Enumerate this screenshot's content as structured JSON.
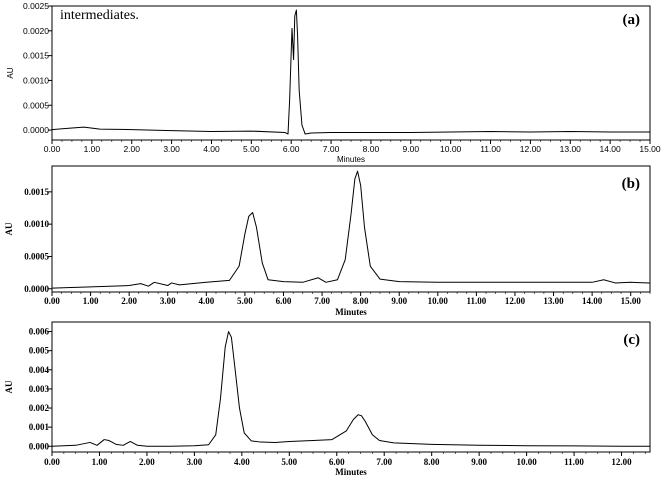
{
  "chart_data": [
    {
      "type": "line",
      "panel_label": "(a)",
      "annotation": "intermediates.",
      "xlabel": "Minutes",
      "ylabel": "AU",
      "xlim": [
        0,
        15
      ],
      "ylim": [
        -0.0002,
        0.0025
      ],
      "x_ticks": [
        0,
        1,
        2,
        3,
        4,
        5,
        6,
        7,
        8,
        9,
        10,
        11,
        12,
        13,
        14,
        15
      ],
      "x_tick_labels": [
        "0.00",
        "1.00",
        "2.00",
        "3.00",
        "4.00",
        "5.00",
        "6.00",
        "7.00",
        "8.00",
        "9.00",
        "10.00",
        "11.00",
        "12.00",
        "13.00",
        "14.00",
        "15.00"
      ],
      "y_ticks": [
        0,
        0.0005,
        0.001,
        0.0015,
        0.002,
        0.0025
      ],
      "y_tick_labels": [
        "0.0000",
        "0.0005",
        "0.0010",
        "0.0015",
        "0.0020",
        "0.0025"
      ],
      "series": [
        {
          "x": [
            0,
            0.3,
            0.8,
            1.2,
            2,
            3,
            4,
            5,
            5.85,
            5.92,
            5.96,
            6.02,
            6.06,
            6.09,
            6.13,
            6.16,
            6.2,
            6.27,
            6.35,
            6.5,
            7,
            8,
            9,
            10,
            11,
            12,
            13,
            14,
            15
          ],
          "y": [
            1e-05,
            3e-05,
            6e-05,
            2e-05,
            1e-05,
            -1e-05,
            -3e-05,
            -2e-05,
            -5e-05,
            -8e-05,
            0.0006,
            0.00205,
            0.00142,
            0.0023,
            0.00242,
            0.0019,
            0.0008,
            0.0001,
            -8e-05,
            -6e-05,
            -5e-05,
            -5e-05,
            -5e-05,
            -4e-05,
            -3e-05,
            -4e-05,
            -3e-05,
            -4e-05,
            -4e-05
          ]
        }
      ]
    },
    {
      "type": "line",
      "panel_label": "(b)",
      "xlabel": "Minutes",
      "ylabel": "AU",
      "xlim": [
        0,
        15.5
      ],
      "ylim": [
        -5e-05,
        0.0019
      ],
      "x_ticks": [
        0,
        1,
        2,
        3,
        4,
        5,
        6,
        7,
        8,
        9,
        10,
        11,
        12,
        13,
        14,
        15
      ],
      "x_tick_labels": [
        "0.00",
        "1.00",
        "2.00",
        "3.00",
        "4.00",
        "5.00",
        "6.00",
        "7.00",
        "8.00",
        "9.00",
        "10.00",
        "11.00",
        "12.00",
        "13.00",
        "14.00",
        "15.00"
      ],
      "y_ticks": [
        0,
        0.0005,
        0.001,
        0.0015
      ],
      "y_tick_labels": [
        "0.0000",
        "0.0005",
        "0.0010",
        "0.0015"
      ],
      "series": [
        {
          "x": [
            0,
            1,
            2,
            2.3,
            2.5,
            2.65,
            3,
            3.1,
            3.3,
            4,
            4.6,
            4.85,
            5.0,
            5.1,
            5.2,
            5.3,
            5.45,
            5.6,
            6,
            6.5,
            6.9,
            7.1,
            7.4,
            7.6,
            7.75,
            7.85,
            7.92,
            8.0,
            8.1,
            8.25,
            8.5,
            9,
            10,
            11,
            12,
            13,
            14,
            14.3,
            14.6,
            15,
            15.5
          ],
          "y": [
            1e-05,
            3e-05,
            5e-05,
            8e-05,
            4e-05,
            0.0001,
            5e-05,
            9e-05,
            6e-05,
            0.0001,
            0.00013,
            0.00035,
            0.00085,
            0.00112,
            0.00118,
            0.00095,
            0.0004,
            0.00014,
            0.00011,
            0.0001,
            0.00017,
            0.0001,
            0.00014,
            0.00045,
            0.00115,
            0.0017,
            0.00182,
            0.0016,
            0.00095,
            0.00035,
            0.00015,
            0.00011,
            0.0001,
            0.0001,
            0.0001,
            0.0001,
            0.0001,
            0.00014,
            9e-05,
            0.0001,
            9e-05
          ]
        }
      ]
    },
    {
      "type": "line",
      "panel_label": "(c)",
      "xlabel": "Minutes",
      "ylabel": "AU",
      "xlim": [
        0,
        12.6
      ],
      "ylim": [
        -0.0003,
        0.0065
      ],
      "x_ticks": [
        0,
        1,
        2,
        3,
        4,
        5,
        6,
        7,
        8,
        9,
        10,
        11,
        12
      ],
      "x_tick_labels": [
        "0.00",
        "1.00",
        "2.00",
        "3.00",
        "4.00",
        "5.00",
        "6.00",
        "7.00",
        "8.00",
        "9.00",
        "10.00",
        "11.00",
        "12.00"
      ],
      "y_ticks": [
        0,
        0.001,
        0.002,
        0.003,
        0.004,
        0.005,
        0.006
      ],
      "y_tick_labels": [
        "0.000",
        "0.001",
        "0.002",
        "0.003",
        "0.004",
        "0.005",
        "0.006"
      ],
      "series": [
        {
          "x": [
            0,
            0.5,
            0.8,
            0.95,
            1.1,
            1.2,
            1.35,
            1.5,
            1.65,
            1.8,
            2,
            2.5,
            3,
            3.3,
            3.45,
            3.55,
            3.65,
            3.72,
            3.78,
            3.85,
            3.95,
            4.05,
            4.2,
            4.4,
            4.7,
            5,
            5.5,
            5.9,
            6.2,
            6.35,
            6.45,
            6.52,
            6.6,
            6.75,
            6.9,
            7.2,
            8,
            9,
            10,
            11,
            12,
            12.6
          ],
          "y": [
            0.0,
            5e-05,
            0.0002,
            5e-05,
            0.00035,
            0.0003,
            0.0001,
            5e-05,
            0.00025,
            5e-05,
            0.0,
            0.0,
            3e-05,
            8e-05,
            0.0006,
            0.0025,
            0.0052,
            0.006,
            0.0057,
            0.0042,
            0.002,
            0.0007,
            0.00028,
            0.00022,
            0.0002,
            0.00025,
            0.0003,
            0.00035,
            0.0008,
            0.0014,
            0.00165,
            0.0016,
            0.0013,
            0.0006,
            0.0003,
            0.00018,
            0.0001,
            5e-05,
            3e-05,
            2e-05,
            0.0,
            0.0
          ]
        }
      ]
    }
  ]
}
